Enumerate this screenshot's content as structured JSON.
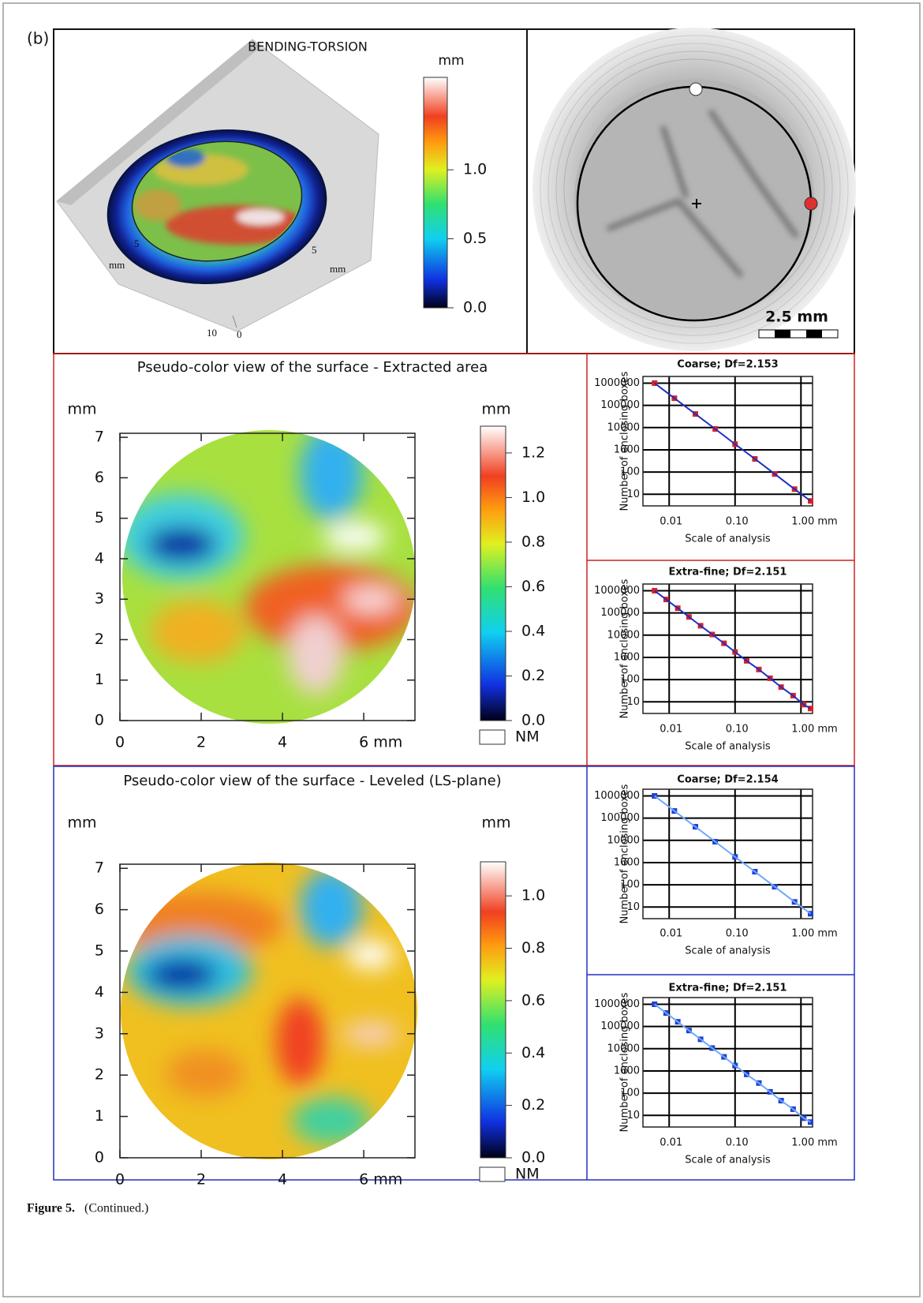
{
  "panel_label": "(b)",
  "caption": {
    "label": "Figure 5.",
    "text": "(Continued.)"
  },
  "top_left": {
    "title": "BENDING-TORSION",
    "unit": "mm",
    "left_tick": 5,
    "left_unit": "mm",
    "right_tick": 5,
    "right_unit": "mm",
    "bottom_ticks": [
      10,
      0
    ],
    "clim": [
      0,
      1.67
    ],
    "cticks": [
      {
        "value": 0,
        "label": "0.0"
      },
      {
        "value": 0.5,
        "label": "0.5"
      },
      {
        "value": 1,
        "label": "1.0"
      }
    ]
  },
  "top_right": {
    "scale_label": "2.5 mm"
  },
  "chart_data": [
    {
      "type": "surface",
      "title": "Pseudo-color view of the surface - Extracted area",
      "y_unit": "mm",
      "xlim": [
        0,
        7.26
      ],
      "xticks": [
        0,
        2,
        4,
        {
          "value": 6,
          "label": "6 mm"
        }
      ],
      "ylim": [
        0,
        7.1
      ],
      "yticks": [
        0,
        1,
        2,
        3,
        4,
        5,
        6,
        7
      ],
      "colorbar": {
        "unit": "mm",
        "lim": [
          0,
          1.32
        ],
        "missing_label": "NM",
        "ticks": [
          {
            "value": 0,
            "label": "0.0"
          },
          {
            "value": 0.2,
            "label": "0.2"
          },
          {
            "value": 0.4,
            "label": "0.4"
          },
          {
            "value": 0.6,
            "label": "0.6"
          },
          {
            "value": 0.8,
            "label": "0.8"
          },
          {
            "value": 1,
            "label": "1.0"
          },
          {
            "value": 1.2,
            "label": "1.2"
          }
        ]
      }
    },
    {
      "type": "scatter",
      "log_scale": true,
      "grid": true,
      "title": "Coarse; Df=2.153",
      "x_label": "Scale of analysis",
      "y_label": "Number of enclosing boxes",
      "color": "#e02020",
      "line_color": "#2030c0",
      "xlim": [
        0.004,
        1.5
      ],
      "xticks": [
        {
          "value": 0.01,
          "label": "0.01"
        },
        {
          "value": 0.1,
          "label": "0.10"
        },
        {
          "value": 1,
          "label": "1.00 mm"
        }
      ],
      "ylim": [
        3,
        2000000
      ],
      "yticks": [
        10,
        100,
        1000,
        10000,
        100000,
        1000000
      ],
      "x": [
        0.006,
        0.012,
        0.025,
        0.05,
        0.1,
        0.2,
        0.4,
        0.8,
        1.4
      ],
      "values": [
        1000000,
        210000,
        41000,
        8700,
        1800,
        390,
        82,
        17,
        5
      ]
    },
    {
      "type": "scatter",
      "log_scale": true,
      "grid": true,
      "title": "Extra-fine; Df=2.151",
      "x_label": "Scale of analysis",
      "y_label": "Number of enclosing boxes",
      "color": "#e02020",
      "line_color": "#2030c0",
      "xlim": [
        0.004,
        1.5
      ],
      "xticks": [
        {
          "value": 0.01,
          "label": "0.01"
        },
        {
          "value": 0.1,
          "label": "0.10"
        },
        {
          "value": 1,
          "label": "1.00 mm"
        }
      ],
      "ylim": [
        3,
        2000000
      ],
      "yticks": [
        10,
        100,
        1000,
        10000,
        100000,
        1000000
      ],
      "x": [
        0.006,
        0.009,
        0.0135,
        0.02,
        0.03,
        0.045,
        0.068,
        0.1,
        0.15,
        0.23,
        0.34,
        0.5,
        0.76,
        1.1,
        1.4
      ],
      "values": [
        1000000,
        403000,
        163000,
        66000,
        26500,
        10700,
        4300,
        1750,
        700,
        285,
        115,
        46,
        19,
        7.5,
        5
      ]
    },
    {
      "type": "surface",
      "title": "Pseudo-color view of the surface - Leveled (LS-plane)",
      "y_unit": "mm",
      "xlim": [
        0,
        7.26
      ],
      "xticks": [
        0,
        2,
        4,
        {
          "value": 6,
          "label": "6 mm"
        }
      ],
      "ylim": [
        0,
        7.1
      ],
      "yticks": [
        0,
        1,
        2,
        3,
        4,
        5,
        6,
        7
      ],
      "colorbar": {
        "unit": "mm",
        "lim": [
          0,
          1.13
        ],
        "missing_label": "NM",
        "ticks": [
          {
            "value": 0,
            "label": "0.0"
          },
          {
            "value": 0.2,
            "label": "0.2"
          },
          {
            "value": 0.4,
            "label": "0.4"
          },
          {
            "value": 0.6,
            "label": "0.6"
          },
          {
            "value": 0.8,
            "label": "0.8"
          },
          {
            "value": 1,
            "label": "1.0"
          }
        ]
      }
    },
    {
      "type": "scatter",
      "log_scale": true,
      "grid": true,
      "title": "Coarse; Df=2.154",
      "x_label": "Scale of analysis",
      "y_label": "Number of enclosing boxes",
      "color": "#2040d0",
      "line_color": "#6fa8ff",
      "xlim": [
        0.004,
        1.5
      ],
      "xticks": [
        {
          "value": 0.01,
          "label": "0.01"
        },
        {
          "value": 0.1,
          "label": "0.10"
        },
        {
          "value": 1,
          "label": "1.00 mm"
        }
      ],
      "ylim": [
        3,
        2000000
      ],
      "yticks": [
        10,
        100,
        1000,
        10000,
        100000,
        1000000
      ],
      "x": [
        0.006,
        0.012,
        0.025,
        0.05,
        0.1,
        0.2,
        0.4,
        0.8,
        1.4
      ],
      "values": [
        1000000,
        210000,
        41000,
        8700,
        1800,
        390,
        82,
        17,
        5
      ]
    },
    {
      "type": "scatter",
      "log_scale": true,
      "grid": true,
      "title": "Extra-fine; Df=2.151",
      "x_label": "Scale of analysis",
      "y_label": "Number of enclosing boxes",
      "color": "#2040d0",
      "line_color": "#6fa8ff",
      "xlim": [
        0.004,
        1.5
      ],
      "xticks": [
        {
          "value": 0.01,
          "label": "0.01"
        },
        {
          "value": 0.1,
          "label": "0.10"
        },
        {
          "value": 1,
          "label": "1.00 mm"
        }
      ],
      "ylim": [
        3,
        2000000
      ],
      "yticks": [
        10,
        100,
        1000,
        10000,
        100000,
        1000000
      ],
      "x": [
        0.006,
        0.009,
        0.0135,
        0.02,
        0.03,
        0.045,
        0.068,
        0.1,
        0.15,
        0.23,
        0.34,
        0.5,
        0.76,
        1.1,
        1.4
      ],
      "values": [
        1000000,
        403000,
        163000,
        66000,
        26500,
        10700,
        4300,
        1750,
        700,
        285,
        115,
        46,
        19,
        7.5,
        5
      ]
    }
  ]
}
